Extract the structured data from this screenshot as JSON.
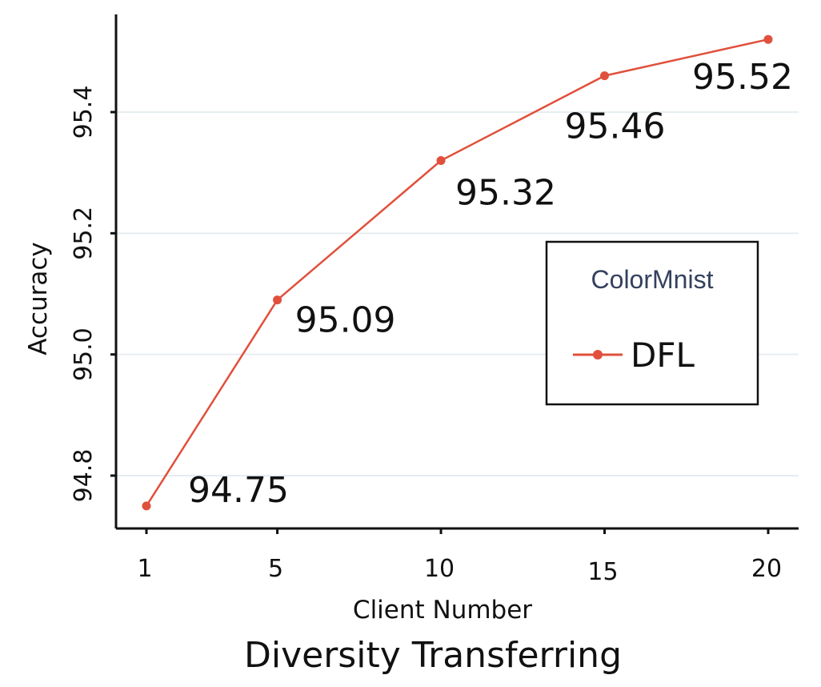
{
  "chart_data": {
    "type": "line",
    "title": "Diversity Transferring",
    "xlabel": "Client Number",
    "ylabel": "Accuracy",
    "x": [
      1,
      5,
      10,
      15,
      20
    ],
    "xticks": [
      "1",
      "5",
      "10",
      "15",
      "20"
    ],
    "yticks": [
      "94.8",
      "95.0",
      "95.2",
      "95.4"
    ],
    "ylim": [
      94.7,
      95.57
    ],
    "grid": true,
    "series": [
      {
        "name": "DFL",
        "values": [
          94.75,
          95.09,
          95.32,
          95.46,
          95.52
        ],
        "labels": [
          "94.75",
          "95.09",
          "95.32",
          "95.46",
          "95.52"
        ],
        "color": "#e0503c"
      }
    ],
    "legend": {
      "title": "ColorMnist",
      "title_color": "#34405e",
      "placement": "center-right",
      "entries": [
        "DFL"
      ]
    }
  }
}
